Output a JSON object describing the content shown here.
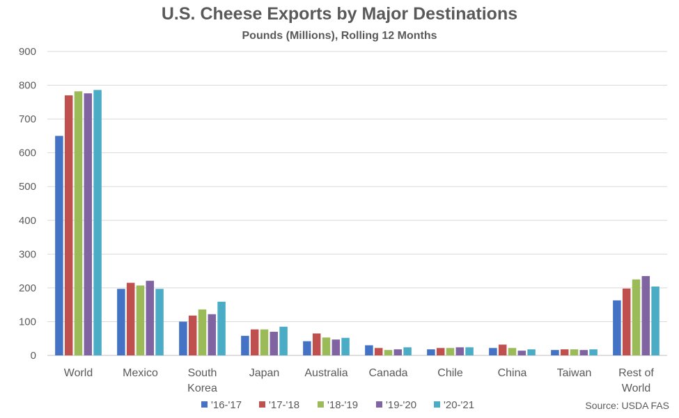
{
  "chart_data": {
    "type": "bar",
    "title": "U.S. Cheese Exports by Major Destinations",
    "subtitle": "Pounds (Millions), Rolling 12 Months",
    "source": "Source: USDA FAS",
    "categories": [
      [
        "World"
      ],
      [
        "Mexico"
      ],
      [
        "South",
        "Korea"
      ],
      [
        "Japan"
      ],
      [
        "Australia"
      ],
      [
        "Canada"
      ],
      [
        "Chile"
      ],
      [
        "China"
      ],
      [
        "Taiwan"
      ],
      [
        "Rest of",
        "World"
      ]
    ],
    "ylim": [
      0,
      900
    ],
    "yticks": [
      0,
      100,
      200,
      300,
      400,
      500,
      600,
      700,
      800,
      900
    ],
    "grid": true,
    "legend_position": "bottom",
    "series": [
      {
        "name": "'16-'17",
        "color": "#4472C4",
        "values": [
          650,
          197,
          100,
          58,
          42,
          30,
          18,
          22,
          16,
          163
        ]
      },
      {
        "name": "'17-'18",
        "color": "#C0504D",
        "values": [
          770,
          215,
          118,
          77,
          65,
          22,
          22,
          32,
          18,
          198
        ]
      },
      {
        "name": "'18-'19",
        "color": "#9BBB59",
        "values": [
          782,
          207,
          136,
          77,
          53,
          16,
          22,
          22,
          18,
          225
        ]
      },
      {
        "name": "'19-'20",
        "color": "#8064A2",
        "values": [
          776,
          221,
          122,
          70,
          47,
          18,
          24,
          14,
          16,
          235
        ]
      },
      {
        "name": "'20-'21",
        "color": "#4BACC6",
        "values": [
          786,
          197,
          159,
          85,
          52,
          24,
          24,
          18,
          18,
          204
        ]
      }
    ]
  }
}
